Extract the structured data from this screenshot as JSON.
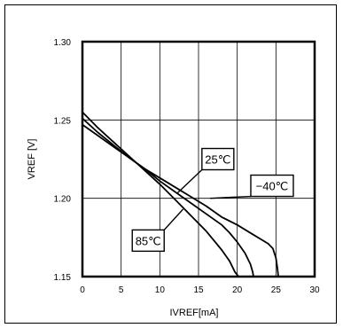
{
  "chart_data": {
    "type": "line",
    "title": "",
    "xlabel": "IVREF[mA]",
    "ylabel": "VREF [V]",
    "xlim": [
      0,
      30
    ],
    "ylim": [
      1.15,
      1.3
    ],
    "xticks": [
      0,
      5,
      10,
      15,
      20,
      25,
      30
    ],
    "xtick_labels": [
      "0",
      "5",
      "10",
      "15",
      "20",
      "25",
      "30"
    ],
    "yticks": [
      1.15,
      1.2,
      1.25,
      1.3
    ],
    "ytick_labels": [
      "1.15",
      "1.20",
      "1.25",
      "1.30"
    ],
    "grid": true,
    "series": [
      {
        "name": "85°C",
        "x": [
          0,
          2,
          4,
          6,
          8,
          10,
          12,
          14,
          16,
          17,
          18,
          19,
          19.7,
          20,
          20.2
        ],
        "y": [
          1.255,
          1.245,
          1.236,
          1.227,
          1.218,
          1.209,
          1.199,
          1.189,
          1.179,
          1.173,
          1.167,
          1.16,
          1.153,
          1.151,
          1.15
        ]
      },
      {
        "name": "25°C",
        "x": [
          0,
          2,
          4,
          6,
          8,
          10,
          12,
          14,
          16,
          18,
          19,
          20,
          21,
          21.7,
          22,
          22.1
        ],
        "y": [
          1.251,
          1.242,
          1.234,
          1.226,
          1.219,
          1.211,
          1.204,
          1.197,
          1.19,
          1.183,
          1.178,
          1.172,
          1.165,
          1.158,
          1.153,
          1.15
        ]
      },
      {
        "name": "-40°C",
        "x": [
          0,
          2,
          4,
          6,
          8,
          10,
          12,
          14,
          16,
          18,
          20,
          22,
          23,
          24,
          24.6,
          25,
          25.2,
          25.3
        ],
        "y": [
          1.247,
          1.24,
          1.233,
          1.226,
          1.219,
          1.213,
          1.207,
          1.201,
          1.195,
          1.188,
          1.183,
          1.177,
          1.174,
          1.171,
          1.168,
          1.162,
          1.155,
          1.15
        ]
      }
    ],
    "annotations": [
      {
        "label": "25℃",
        "box_x": 17.5,
        "box_y": 1.225,
        "tip_x": 12.2,
        "tip_y": 1.203
      },
      {
        "label": "−40℃",
        "box_x": 24.5,
        "box_y": 1.208,
        "tip_x": 16.5,
        "tip_y": 1.2
      },
      {
        "label": "85℃",
        "box_x": 8.5,
        "box_y": 1.173,
        "tip_x": 13,
        "tip_y": 1.193
      }
    ]
  }
}
